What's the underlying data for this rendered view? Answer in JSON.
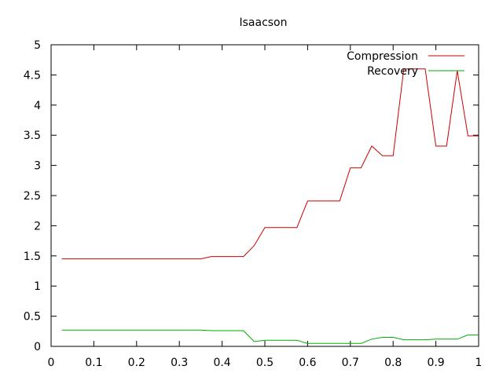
{
  "chart_data": {
    "type": "line",
    "title": "Isaacson",
    "xlabel": "",
    "ylabel": "",
    "xlim": [
      0,
      1
    ],
    "ylim": [
      0,
      5
    ],
    "x_ticks": [
      "0",
      "0.1",
      "0.2",
      "0.3",
      "0.4",
      "0.5",
      "0.6",
      "0.7",
      "0.8",
      "0.9",
      "1"
    ],
    "y_ticks": [
      "0",
      "0.5",
      "1",
      "1.5",
      "2",
      "2.5",
      "3",
      "3.5",
      "4",
      "4.5",
      "5"
    ],
    "grid": false,
    "legend_position": "top-right",
    "series": [
      {
        "name": "Compression",
        "color": "#cc0000",
        "x": [
          0.025,
          0.35,
          0.375,
          0.45,
          0.475,
          0.5,
          0.575,
          0.6,
          0.675,
          0.7,
          0.725,
          0.75,
          0.775,
          0.8,
          0.825,
          0.85,
          0.875,
          0.9,
          0.925,
          0.95,
          0.975,
          1.0
        ],
        "y": [
          1.45,
          1.45,
          1.49,
          1.49,
          1.67,
          1.97,
          1.97,
          2.41,
          2.41,
          2.96,
          2.96,
          3.32,
          3.16,
          3.16,
          4.6,
          4.6,
          4.6,
          3.32,
          3.32,
          4.57,
          3.49,
          3.49
        ]
      },
      {
        "name": "Recovery",
        "color": "#00aa00",
        "x": [
          0.025,
          0.35,
          0.375,
          0.45,
          0.475,
          0.5,
          0.575,
          0.6,
          0.675,
          0.7,
          0.725,
          0.75,
          0.775,
          0.8,
          0.825,
          0.85,
          0.875,
          0.9,
          0.925,
          0.95,
          0.975,
          1.0
        ],
        "y": [
          0.27,
          0.27,
          0.26,
          0.26,
          0.08,
          0.1,
          0.1,
          0.05,
          0.05,
          0.05,
          0.05,
          0.12,
          0.15,
          0.15,
          0.11,
          0.11,
          0.11,
          0.12,
          0.12,
          0.12,
          0.19,
          0.19
        ]
      }
    ]
  }
}
